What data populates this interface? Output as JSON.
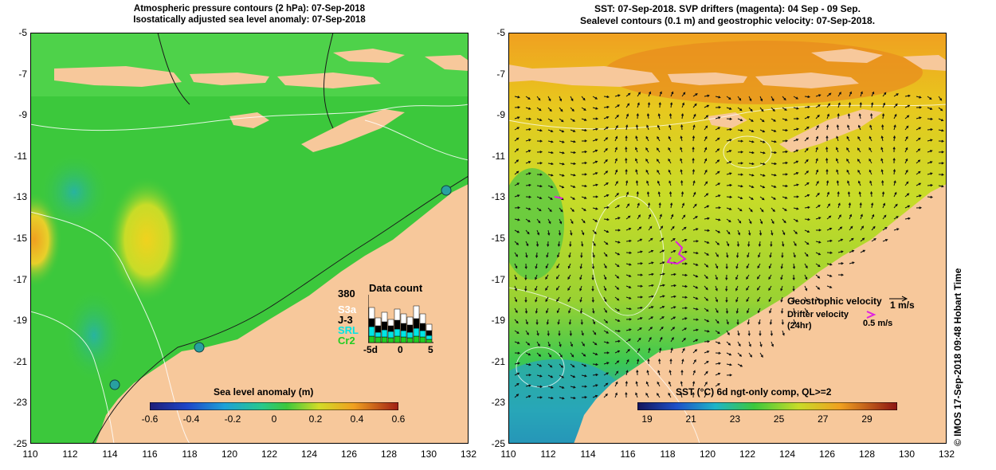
{
  "left": {
    "title_line1": "Atmospheric pressure contours (2 hPa): 07-Sep-2018",
    "title_line2": "Isostatically adjusted sea level anomaly: 07-Sep-2018",
    "colorbar_title": "Sea level anomaly (m)",
    "colorbar_ticks": [
      "-0.6",
      "-0.4",
      "-0.2",
      "0",
      "0.2",
      "0.4",
      "0.6"
    ],
    "data_count": {
      "title": "Data count",
      "max": "380",
      "missions": [
        "S3a",
        "J-3",
        "SRL",
        "Cr2"
      ],
      "mission_colors": [
        "#ffffff",
        "#000000",
        "#00e5e5",
        "#22cc22"
      ],
      "x_ticks": [
        "-5d",
        "0",
        "5"
      ]
    }
  },
  "right": {
    "title_line1": "SST: 07-Sep-2018. SVP drifters (magenta): 04 Sep - 09 Sep.",
    "title_line2": "Sealevel contours (0.1 m) and geostrophic velocity: 07-Sep-2018.",
    "colorbar_title": "SST (°C) 6d ngt-only comp, QL>=2",
    "colorbar_ticks": [
      "19",
      "21",
      "23",
      "25",
      "27",
      "29"
    ],
    "legend": {
      "geostrophic": "Geostrophic velocity",
      "geostrophic_scale": "1 m/s",
      "drifter": "Drifter velocity",
      "drifter_period": "(24hr)",
      "drifter_scale": "0.5 m/s"
    },
    "credit": "© IMOS 17-Sep-2018 09:48 Hobart Time"
  },
  "axes": {
    "y_ticks": [
      "-5",
      "-7",
      "-9",
      "-11",
      "-13",
      "-15",
      "-17",
      "-19",
      "-21",
      "-23",
      "-25"
    ],
    "x_ticks": [
      "110",
      "112",
      "114",
      "116",
      "118",
      "120",
      "122",
      "124",
      "126",
      "128",
      "130",
      "132"
    ],
    "lon_range": [
      110,
      132
    ],
    "lat_range": [
      -25,
      -5
    ]
  },
  "colors": {
    "land": "#f7c89b",
    "sla_ocean": "#3cc83c",
    "sst_ocean": "#c8dc28",
    "drifter": "#e020e0"
  }
}
